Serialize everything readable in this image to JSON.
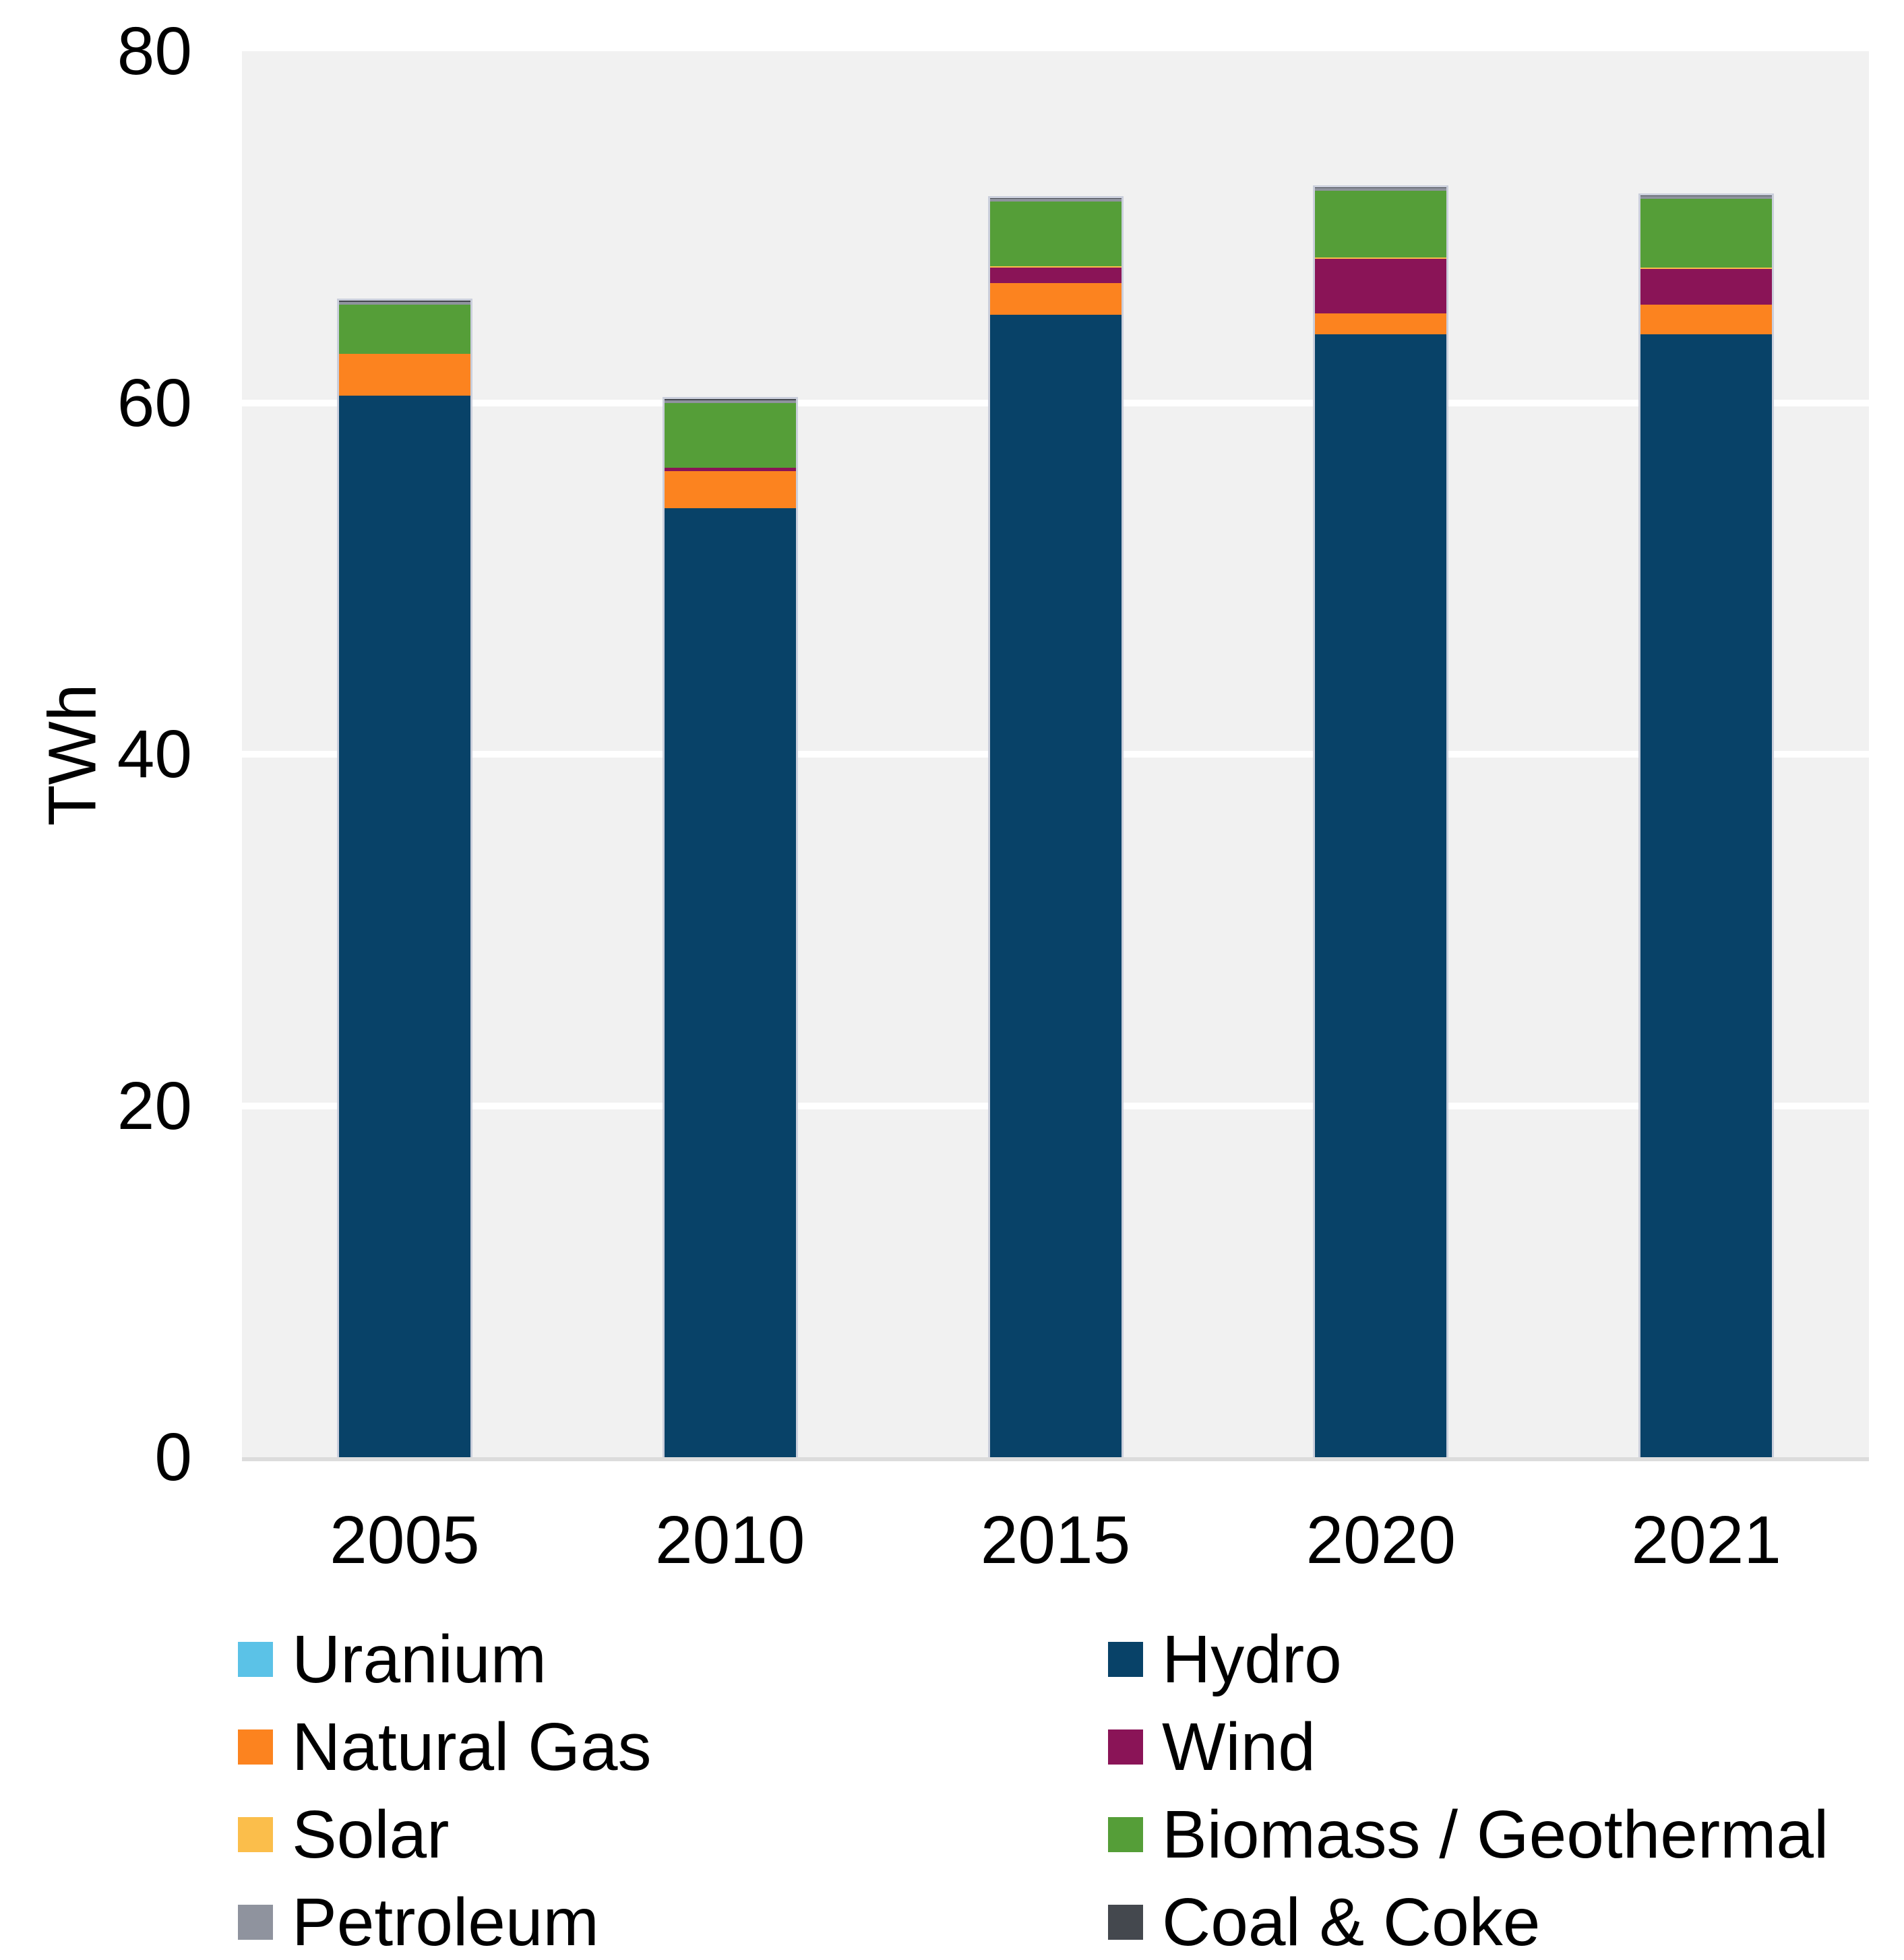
{
  "colors": {
    "plot_background": "#f1f1f1",
    "gridline": "#ffffff",
    "axis_line": "#dcdcdc",
    "text": "#000000",
    "bar_border": "#c6cbd9"
  },
  "chart_data": {
    "type": "bar",
    "stacked": true,
    "title": "",
    "xlabel": "",
    "ylabel": "TWh",
    "ylim": [
      0,
      80
    ],
    "yticks": [
      0,
      20,
      40,
      60,
      80
    ],
    "grid": "horizontal white gridlines on light gray panel",
    "legend_position": "bottom, two columns",
    "categories": [
      "2005",
      "2010",
      "2015",
      "2020",
      "2021"
    ],
    "series": [
      {
        "name": "Uranium",
        "color": "#5bc2e7",
        "values": [
          0,
          0,
          0,
          0,
          0
        ]
      },
      {
        "name": "Hydro",
        "color": "#084268",
        "values": [
          60.4,
          54.0,
          65.0,
          63.9,
          63.9
        ]
      },
      {
        "name": "Natural Gas",
        "color": "#fc831f",
        "values": [
          2.4,
          2.1,
          1.8,
          1.2,
          1.7
        ]
      },
      {
        "name": "Wind",
        "color": "#8a1457",
        "values": [
          0,
          0.2,
          0.9,
          3.1,
          2.0
        ]
      },
      {
        "name": "Solar",
        "color": "#fbbe4b",
        "values": [
          0,
          0,
          0.05,
          0.05,
          0.1
        ]
      },
      {
        "name": "Biomass / Geothermal",
        "color": "#559e38",
        "values": [
          2.8,
          3.7,
          3.7,
          3.8,
          3.9
        ]
      },
      {
        "name": "Petroleum",
        "color": "#8f939e",
        "values": [
          0.15,
          0.15,
          0.15,
          0.15,
          0.15
        ]
      },
      {
        "name": "Coal & Coke",
        "color": "#44484e",
        "values": [
          0.05,
          0.05,
          0.05,
          0.05,
          0.05
        ]
      }
    ],
    "totals": [
      65.8,
      60.2,
      71.6,
      72.2,
      71.8
    ],
    "legend_columns": [
      [
        "Uranium",
        "Natural Gas",
        "Solar",
        "Petroleum"
      ],
      [
        "Hydro",
        "Wind",
        "Biomass / Geothermal",
        "Coal & Coke"
      ]
    ]
  },
  "layout_values": {
    "y_tick_labels": [
      "0",
      "20",
      "40",
      "60",
      "80"
    ],
    "x_tick_labels": [
      "2005",
      "2010",
      "2015",
      "2020",
      "2021"
    ]
  }
}
